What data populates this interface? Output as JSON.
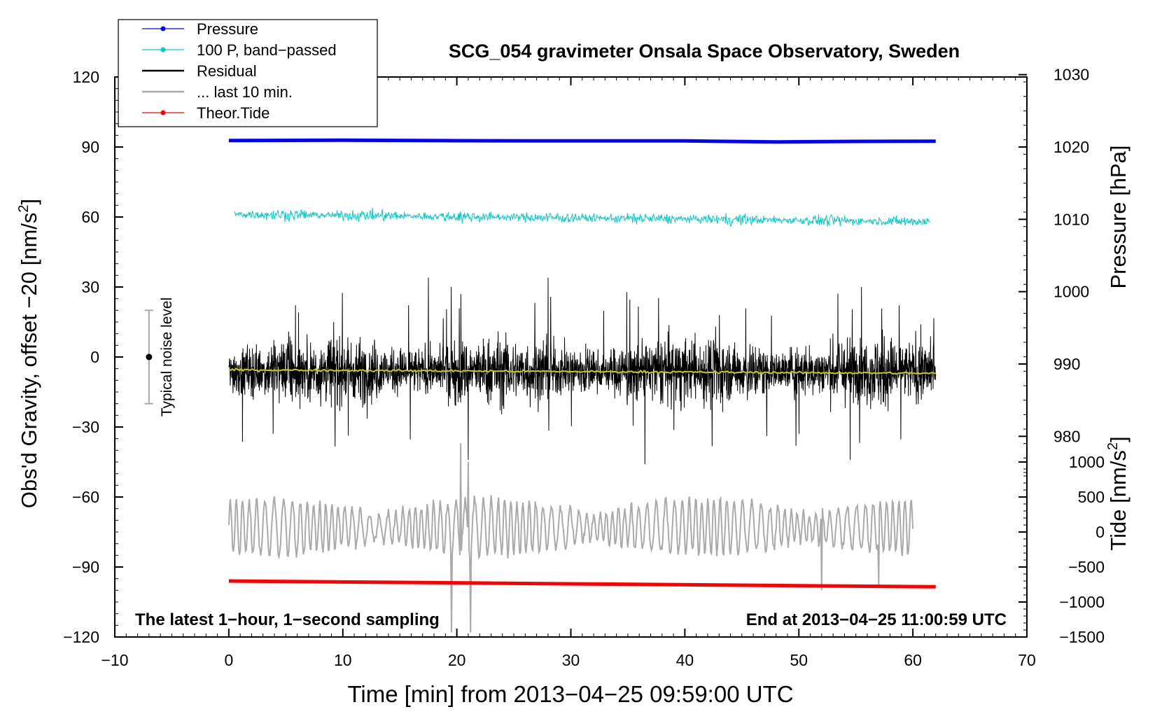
{
  "chart_data": {
    "type": "line",
    "title": "SCG_054 gravimeter Onsala Space Observatory, Sweden",
    "xlabel": "Time [min] from 2013−04−25 09:59:00 UTC",
    "ylabel_left": "Obs'd Gravity, offset −20 [nm/s",
    "ylabel_left_sup": "2",
    "ylabel_left_close": "]",
    "ylabel_right_pressure": "Pressure [hPa]",
    "ylabel_right_tide": "Tide [nm/s",
    "ylabel_right_tide_sup": "2",
    "ylabel_right_tide_close": "]",
    "xlim": [
      -10,
      70
    ],
    "ylim": [
      -120,
      120
    ],
    "x_ticks": [
      -10,
      0,
      10,
      20,
      30,
      40,
      50,
      60,
      70
    ],
    "x_tick_labels": [
      "−10",
      "0",
      "10",
      "20",
      "30",
      "40",
      "50",
      "60",
      "70"
    ],
    "y_ticks": [
      -120,
      -90,
      -60,
      -30,
      0,
      30,
      60,
      90,
      120
    ],
    "y_tick_labels": [
      "−120",
      "−90",
      "−60",
      "−30",
      "0",
      "30",
      "60",
      "90",
      "120"
    ],
    "pressure_axis": {
      "ticks": [
        980,
        990,
        1000,
        1010,
        1020,
        1030
      ],
      "tick_labels": [
        "980",
        "990",
        "1000",
        "1010",
        "1020",
        "1030"
      ],
      "value_at_gravity_90": 1020,
      "hpa_per_gravity_unit": 0.3226
    },
    "tide_axis": {
      "ticks": [
        -1500,
        -1000,
        -500,
        0,
        500,
        1000
      ],
      "tick_labels": [
        "−1500",
        "−1000",
        "−500",
        "0",
        "500",
        "1000"
      ],
      "value_at_gravity_minus120": -1500,
      "tide_per_gravity_unit": 33.33
    },
    "legend_position": "top-left",
    "legend": [
      {
        "label": "Pressure",
        "color": "#0000ff",
        "marker": true
      },
      {
        "label": "100 P, band−passed",
        "color": "#00cccc",
        "marker": true
      },
      {
        "label": "Residual",
        "color": "#000000",
        "marker": false
      },
      {
        "label": "... last 10 min.",
        "color": "#aaaaaa",
        "marker": false
      },
      {
        "label": "Theor.Tide",
        "color": "#ff0000",
        "marker": true
      }
    ],
    "series": [
      {
        "name": "Pressure",
        "color": "#0000ff",
        "x": [
          0,
          10,
          20,
          30,
          40,
          48,
          55,
          62
        ],
        "y": [
          92.8,
          92.9,
          92.7,
          92.6,
          92.6,
          92.2,
          92.4,
          92.5
        ]
      },
      {
        "name": "100 P, band−passed",
        "color": "#00cccc",
        "x_range": [
          0.5,
          61.5
        ],
        "baseline": [
          61.2,
          58.0
        ],
        "amplitude": 2.5
      },
      {
        "name": "Residual",
        "color": "#000000",
        "x_range": [
          0,
          62
        ],
        "baseline": -6,
        "amplitude": 14,
        "extremes": [
          [
            17.5,
            34
          ],
          [
            28,
            34
          ],
          [
            19.5,
            30
          ],
          [
            55.5,
            30
          ],
          [
            21,
            -44
          ],
          [
            54.5,
            -44
          ],
          [
            36.5,
            -46
          ]
        ]
      },
      {
        "name": "Residual mean",
        "color": "#cccc00",
        "x_range": [
          0,
          62
        ],
        "y": [
          -5.5,
          -7
        ]
      },
      {
        "name": "... last 10 min.",
        "color": "#aaaaaa",
        "x_range": [
          0,
          60
        ],
        "baseline": -73,
        "amplitude": 12,
        "extremes": [
          [
            19.5,
            -118
          ],
          [
            20.3,
            -37
          ],
          [
            21.2,
            -118
          ],
          [
            21,
            -45
          ],
          [
            52,
            -100
          ],
          [
            57,
            -98
          ]
        ]
      },
      {
        "name": "Theor.Tide",
        "color": "#ff0000",
        "x": [
          0,
          62
        ],
        "y": [
          -96,
          -98.5
        ]
      }
    ],
    "noise_level": {
      "label": "Typical noise level",
      "x": -7,
      "y": 0,
      "range": [
        -20,
        20
      ]
    },
    "annotations": {
      "left": "The latest 1−hour, 1−second sampling",
      "right": "End at 2013−04−25 11:00:59 UTC"
    }
  }
}
